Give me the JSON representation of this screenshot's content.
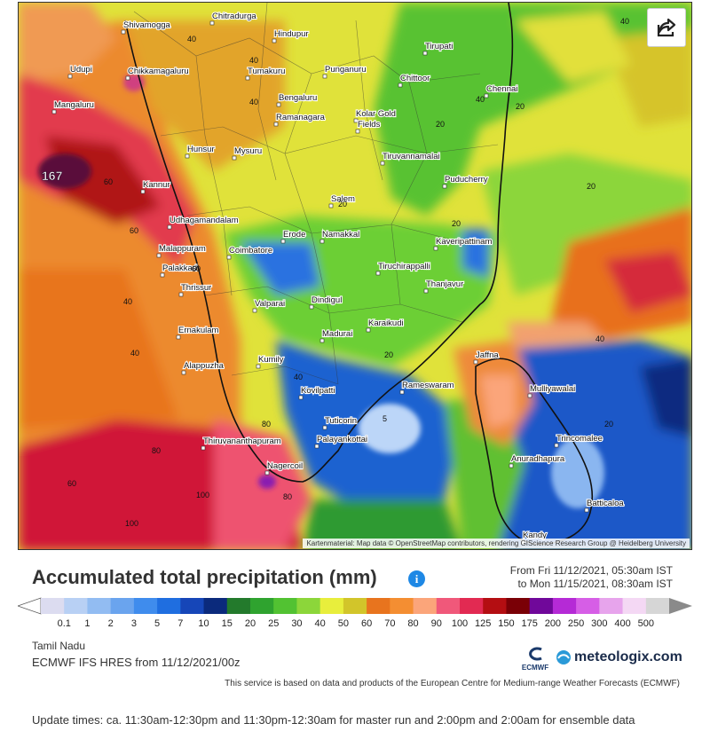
{
  "map": {
    "attribution": "Kartenmaterial: Map data © OpenStreetMap contributors, rendering GIScience Research Group @ Heidelberg University",
    "max_label": "167",
    "cities": [
      {
        "name": "Chitradurga"
      },
      {
        "name": "Shivamogga"
      },
      {
        "name": "Hindupur"
      },
      {
        "name": "Tirupati"
      },
      {
        "name": "Udupi"
      },
      {
        "name": "Chikkamagaluru"
      },
      {
        "name": "Tumakuru"
      },
      {
        "name": "Punganuru"
      },
      {
        "name": "Chittoor"
      },
      {
        "name": "Chennai"
      },
      {
        "name": "Mangaluru"
      },
      {
        "name": "Bengaluru"
      },
      {
        "name": "Ramanagara"
      },
      {
        "name": "Kolar Gold"
      },
      {
        "name": "Fields"
      },
      {
        "name": "Hunsur"
      },
      {
        "name": "Mysuru"
      },
      {
        "name": "Tiruvannamalai"
      },
      {
        "name": "Kannur"
      },
      {
        "name": "Puducherry"
      },
      {
        "name": "Salem"
      },
      {
        "name": "Udhagamandalam"
      },
      {
        "name": "Erode"
      },
      {
        "name": "Namakkal"
      },
      {
        "name": "Kaveripattinam"
      },
      {
        "name": "Malappuram"
      },
      {
        "name": "Coimbatore"
      },
      {
        "name": "Palakkad"
      },
      {
        "name": "Tiruchirappalli"
      },
      {
        "name": "Thrissur"
      },
      {
        "name": "Thanjavur"
      },
      {
        "name": "Valparai"
      },
      {
        "name": "Dindigul"
      },
      {
        "name": "Ernakulam"
      },
      {
        "name": "Madurai"
      },
      {
        "name": "Karaikudi"
      },
      {
        "name": "Alappuzha"
      },
      {
        "name": "Kumily"
      },
      {
        "name": "Jaffna"
      },
      {
        "name": "Rameswaram"
      },
      {
        "name": "Kovilpatti"
      },
      {
        "name": "Mulliyawalai"
      },
      {
        "name": "Tuticorin"
      },
      {
        "name": "Thiruvananthapuram"
      },
      {
        "name": "Palayankottai"
      },
      {
        "name": "Trincomalee"
      },
      {
        "name": "Nagercoil"
      },
      {
        "name": "Anuradhapura"
      },
      {
        "name": "Batticaloa"
      },
      {
        "name": "Kandy"
      }
    ],
    "contour_labels": [
      "40",
      "40",
      "40",
      "40",
      "60",
      "60",
      "60",
      "40",
      "40",
      "40",
      "20",
      "20",
      "20",
      "20",
      "20",
      "5",
      "40",
      "80",
      "80",
      "100",
      "100",
      "80",
      "60",
      "20",
      "20",
      "40"
    ]
  },
  "header": {
    "title": "Accumulated total precipitation (mm)",
    "period_from": "From Fri 11/12/2021, 05:30am IST",
    "period_to": "to Mon 11/15/2021, 08:30am IST"
  },
  "legend": {
    "labels": [
      "0.1",
      "1",
      "2",
      "3",
      "5",
      "7",
      "10",
      "15",
      "20",
      "25",
      "30",
      "40",
      "50",
      "60",
      "70",
      "80",
      "90",
      "100",
      "125",
      "150",
      "175",
      "200",
      "250",
      "300",
      "400",
      "500"
    ],
    "colors": [
      "#dcdcf0",
      "#b8d0f4",
      "#92bcf2",
      "#6aa4ee",
      "#3f8ced",
      "#1f6ee0",
      "#1646b8",
      "#0b2a7c",
      "#237a2c",
      "#2fa32f",
      "#52c232",
      "#8cd63a",
      "#e8ee3c",
      "#d2c52a",
      "#e8741e",
      "#f48e32",
      "#fba57a",
      "#f0587a",
      "#e22a52",
      "#b40e12",
      "#7a0006",
      "#70089a",
      "#b52ad6",
      "#d65ee6",
      "#e7a4ec",
      "#f4d8f4",
      "#d6d6d6"
    ]
  },
  "info": {
    "region": "Tamil Nadu",
    "model": "ECMWF IFS HRES from 11/12/2021/00z",
    "ecmwf_label": "ECMWF",
    "brand": "meteologix.com",
    "service_note": "This service is based on data and products of the European Centre for Medium-range Weather Forecasts (ECMWF)"
  },
  "update_note": "Update times: ca. 11:30am-12:30pm and 11:30pm-12:30am for master run and 2:00pm and 2:00am for ensemble data"
}
